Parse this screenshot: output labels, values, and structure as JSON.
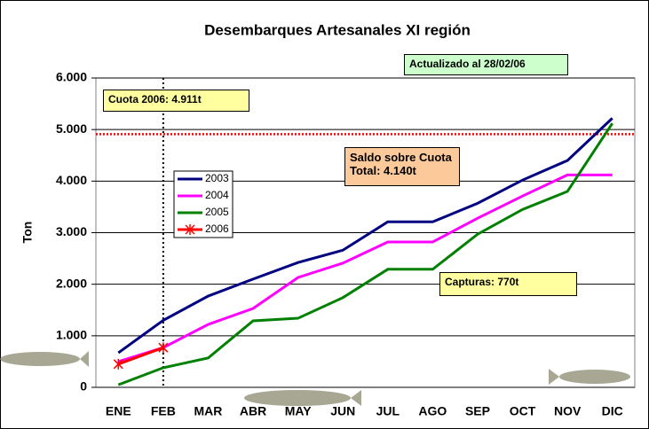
{
  "chart_data": {
    "type": "line",
    "title": "Desembarques Artesanales XI región",
    "y_label": "Ton",
    "categories": [
      "ENE",
      "FEB",
      "MAR",
      "ABR",
      "MAY",
      "JUN",
      "JUL",
      "AGO",
      "SEP",
      "OCT",
      "NOV",
      "DIC"
    ],
    "series": [
      {
        "name": "2003",
        "color": "#000080",
        "values": [
          670,
          1300,
          1770,
          2100,
          2420,
          2660,
          3210,
          3210,
          3570,
          4020,
          4400,
          5220
        ]
      },
      {
        "name": "2004",
        "color": "#ff00ff",
        "values": [
          500,
          770,
          1220,
          1530,
          2130,
          2410,
          2820,
          2820,
          3280,
          3710,
          4120,
          4120
        ]
      },
      {
        "name": "2005",
        "color": "#008000",
        "values": [
          50,
          380,
          570,
          1290,
          1340,
          1740,
          2290,
          2290,
          2970,
          3450,
          3800,
          5120
        ]
      },
      {
        "name": "2006",
        "color": "#ff0000",
        "marker": "star",
        "values": [
          450,
          770,
          null,
          null,
          null,
          null,
          null,
          null,
          null,
          null,
          null,
          null
        ]
      }
    ],
    "ylim": [
      0,
      6000
    ],
    "yticks": [
      0,
      {
        "value": 1000,
        "label": "1.000"
      },
      {
        "value": 2000,
        "label": "2.000"
      },
      {
        "value": 3000,
        "label": "3.000"
      },
      {
        "value": 4000,
        "label": "4.000"
      },
      {
        "value": 5000,
        "label": "5.000"
      },
      {
        "value": 6000,
        "label": "6.000"
      }
    ],
    "grid": true,
    "quota_line": {
      "value": 4911,
      "color": "#ff0000"
    },
    "current_month_line": {
      "category": "FEB",
      "color": "#000000"
    },
    "annotations": {
      "quota": "Cuota 2006: 4.911t",
      "updated": "Actualizado al 28/02/06",
      "balance": [
        "Saldo sobre Cuota",
        "Total: 4.140t"
      ],
      "catches": "Capturas: 770t"
    }
  }
}
